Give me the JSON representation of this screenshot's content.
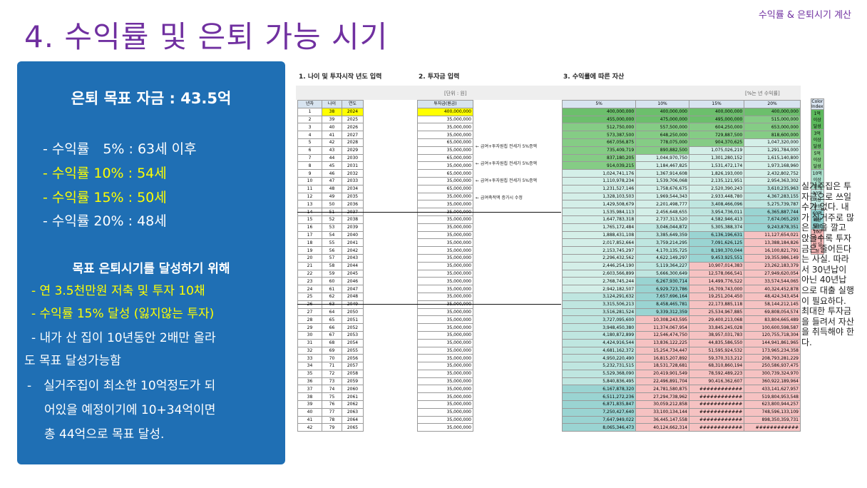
{
  "header": {
    "corner_label": "수익률 & 은퇴시기 계산",
    "title": "4. 수익률 및 은퇴 가능 시기"
  },
  "panel": {
    "goal": "은퇴 목표 자금 : 43.5억",
    "rates": [
      "- 수익률　5% : 63세 이후",
      "- 수익률 10% : 54세",
      "- 수익률 15% : 50세",
      "- 수익률 20% : 48세"
    ],
    "aim_title": "목표 은퇴시기를 달성하기 위해",
    "aims": [
      "- 연 3.5천만원 저축 및 투자 10채",
      "- 수익률 15% 달성 (잃지않는 투자)",
      "- 내가 산 집이 10년동안 2배만 올라",
      "도 목표 달성가능함",
      "-　실거주집이 최소한 10억정도가 되",
      "어있을 예정이기에 10+34억이면",
      "총 44억으로 목표 달성."
    ]
  },
  "sheet": {
    "section1": "1. 나이 및 투자시작 년도 입력",
    "section2": "2. 투자금 입력",
    "section3": "3. 수익률에 따른 자산",
    "unit_left": "[단위 : 원]",
    "unit_right": "[%는 년 수익률]",
    "col_headers": [
      "년차",
      "나이",
      "연도",
      "투자금(원금)",
      "5%",
      "10%",
      "15%",
      "20%"
    ],
    "notes": [
      "← 급여+투자원칩 전세가 5%증액",
      "← 급여+투자원칩 전세가 5%증액",
      "← 급여+투자원칩 전세가 5%증액",
      "← 급여축적액 증가시 수정"
    ],
    "legend_title": "Color Index",
    "legend": [
      {
        "label": "1억 이상 달성",
        "color": "#5cb85c"
      },
      {
        "label": "3억 이상 달성",
        "color": "#6cc06c"
      },
      {
        "label": "5억 이상 달성",
        "color": "#85cc85"
      },
      {
        "label": "10억 이상 달성",
        "color": "#a7dcc9"
      },
      {
        "label": "30억 이상 달성",
        "color": "#bfe6e0"
      },
      {
        "label": "60억 이상 달성",
        "color": "#8fd0cf"
      },
      {
        "label": "100억 이상 달성",
        "color": "#f4b6b6"
      }
    ],
    "rows": [
      [
        "1",
        "38",
        "2024",
        "400,000,000",
        "400,000,000",
        "400,000,000",
        "400,000,000",
        "400,000,000"
      ],
      [
        "2",
        "39",
        "2025",
        "35,000,000",
        "455,000,000",
        "475,000,000",
        "495,000,000",
        "515,000,000"
      ],
      [
        "3",
        "40",
        "2026",
        "35,000,000",
        "512,750,000",
        "557,500,000",
        "604,250,000",
        "653,000,000"
      ],
      [
        "4",
        "41",
        "2027",
        "35,000,000",
        "573,387,500",
        "648,250,000",
        "729,887,500",
        "818,600,000"
      ],
      [
        "5",
        "42",
        "2028",
        "65,000,000",
        "667,056,875",
        "778,075,000",
        "904,370,625",
        "1,047,320,000"
      ],
      [
        "6",
        "43",
        "2029",
        "35,000,000",
        "735,409,719",
        "890,882,500",
        "1,075,026,219",
        "1,291,784,000"
      ],
      [
        "7",
        "44",
        "2030",
        "65,000,000",
        "837,180,205",
        "1,044,970,750",
        "1,301,280,152",
        "1,615,140,800"
      ],
      [
        "8",
        "45",
        "2031",
        "35,000,000",
        "914,039,215",
        "1,184,467,825",
        "1,531,472,174",
        "1,973,168,960"
      ],
      [
        "9",
        "46",
        "2032",
        "65,000,000",
        "1,024,741,176",
        "1,367,914,608",
        "1,826,193,000",
        "2,432,802,752"
      ],
      [
        "10",
        "47",
        "2033",
        "35,000,000",
        "1,110,978,234",
        "1,539,706,068",
        "2,135,121,951",
        "2,954,363,302"
      ],
      [
        "11",
        "48",
        "2034",
        "65,000,000",
        "1,231,527,146",
        "1,758,676,675",
        "2,520,390,243",
        "3,610,235,963"
      ],
      [
        "12",
        "49",
        "2035",
        "35,000,000",
        "1,328,103,503",
        "1,969,544,343",
        "2,933,448,780",
        "4,367,283,155"
      ],
      [
        "13",
        "50",
        "2036",
        "35,000,000",
        "1,429,508,679",
        "2,201,498,777",
        "3,408,466,096",
        "5,275,739,787"
      ],
      [
        "14",
        "51",
        "2037",
        "35,000,000",
        "1,535,984,113",
        "2,456,648,655",
        "3,954,736,011",
        "6,365,887,744"
      ],
      [
        "15",
        "52",
        "2038",
        "35,000,000",
        "1,647,783,318",
        "2,737,313,520",
        "4,582,946,413",
        "7,674,065,293"
      ],
      [
        "16",
        "53",
        "2039",
        "35,000,000",
        "1,765,172,484",
        "3,046,044,872",
        "5,305,388,374",
        "9,243,878,351"
      ],
      [
        "17",
        "54",
        "2040",
        "35,000,000",
        "1,888,431,108",
        "3,385,649,359",
        "6,136,196,631",
        "11,127,654,021"
      ],
      [
        "18",
        "55",
        "2041",
        "35,000,000",
        "2,017,852,664",
        "3,759,214,295",
        "7,091,626,125",
        "13,388,184,826"
      ],
      [
        "19",
        "56",
        "2042",
        "35,000,000",
        "2,153,745,297",
        "4,170,135,725",
        "8,190,370,044",
        "16,100,821,791"
      ],
      [
        "20",
        "57",
        "2043",
        "35,000,000",
        "2,296,432,562",
        "4,622,149,297",
        "9,453,925,551",
        "19,355,986,149"
      ],
      [
        "21",
        "58",
        "2044",
        "35,000,000",
        "2,446,254,190",
        "5,119,364,227",
        "10,907,014,383",
        "23,262,183,379"
      ],
      [
        "22",
        "59",
        "2045",
        "35,000,000",
        "2,603,566,899",
        "5,666,300,649",
        "12,578,066,541",
        "27,949,620,054"
      ],
      [
        "23",
        "60",
        "2046",
        "35,000,000",
        "2,768,745,244",
        "6,267,930,714",
        "14,499,776,522",
        "33,574,544,065"
      ],
      [
        "24",
        "61",
        "2047",
        "35,000,000",
        "2,942,182,507",
        "6,929,723,786",
        "16,709,743,000",
        "40,324,452,878"
      ],
      [
        "25",
        "62",
        "2048",
        "35,000,000",
        "3,124,291,632",
        "7,657,696,164",
        "19,251,204,450",
        "48,424,343,454"
      ],
      [
        "26",
        "63",
        "2049",
        "35,000,000",
        "3,315,506,213",
        "8,458,465,781",
        "22,173,885,118",
        "58,144,212,145"
      ],
      [
        "27",
        "64",
        "2050",
        "35,000,000",
        "3,516,281,524",
        "9,339,312,359",
        "25,534,967,885",
        "69,808,054,574"
      ],
      [
        "28",
        "65",
        "2051",
        "35,000,000",
        "3,727,095,600",
        "10,308,243,595",
        "29,400,213,068",
        "83,804,665,489"
      ],
      [
        "29",
        "66",
        "2052",
        "35,000,000",
        "3,948,450,380",
        "11,374,067,954",
        "33,845,245,028",
        "100,600,598,587"
      ],
      [
        "30",
        "67",
        "2053",
        "35,000,000",
        "4,180,872,899",
        "12,546,474,750",
        "38,957,031,783",
        "120,755,718,304"
      ],
      [
        "31",
        "68",
        "2054",
        "35,000,000",
        "4,424,916,544",
        "13,836,122,225",
        "44,835,586,550",
        "144,941,861,965"
      ],
      [
        "32",
        "69",
        "2055",
        "35,000,000",
        "4,681,162,372",
        "15,254,734,447",
        "51,595,924,532",
        "173,965,234,358"
      ],
      [
        "33",
        "70",
        "2056",
        "35,000,000",
        "4,950,220,490",
        "16,815,207,892",
        "59,370,313,212",
        "208,793,281,229"
      ],
      [
        "34",
        "71",
        "2057",
        "35,000,000",
        "5,232,731,515",
        "18,531,728,681",
        "68,310,860,194",
        "250,586,937,475"
      ],
      [
        "35",
        "72",
        "2058",
        "35,000,000",
        "5,529,368,090",
        "20,419,901,549",
        "78,592,489,223",
        "300,739,324,970"
      ],
      [
        "36",
        "73",
        "2059",
        "35,000,000",
        "5,840,836,495",
        "22,496,891,704",
        "90,416,362,607",
        "360,922,189,964"
      ],
      [
        "37",
        "74",
        "2060",
        "35,000,000",
        "6,167,878,320",
        "24,781,580,875",
        "############",
        "433,141,627,957"
      ],
      [
        "38",
        "75",
        "2061",
        "35,000,000",
        "6,511,272,236",
        "27,294,738,962",
        "############",
        "519,804,953,548"
      ],
      [
        "39",
        "76",
        "2062",
        "35,000,000",
        "6,871,835,847",
        "30,059,212,858",
        "############",
        "623,800,944,257"
      ],
      [
        "40",
        "77",
        "2063",
        "35,000,000",
        "7,250,427,640",
        "33,100,134,144",
        "############",
        "748,596,133,109"
      ],
      [
        "41",
        "78",
        "2064",
        "35,000,000",
        "7,647,949,022",
        "36,445,147,558",
        "############",
        "898,350,359,731"
      ],
      [
        "42",
        "79",
        "2065",
        "35,000,000",
        "8,065,346,473",
        "40,124,662,314",
        "############",
        "############"
      ]
    ]
  },
  "side_note": "실거주집은 투자금으로 쓰일 수가 없다. 내가 실거주로 많은 돈을 깔고 앉을수록 투자금은 줄어든다는 사실. 따라서 30년납이 아닌 40년납으로 대출 실행이 필요하다. 최대한 투자금을 들려서 자산을 취득해야 한다."
}
